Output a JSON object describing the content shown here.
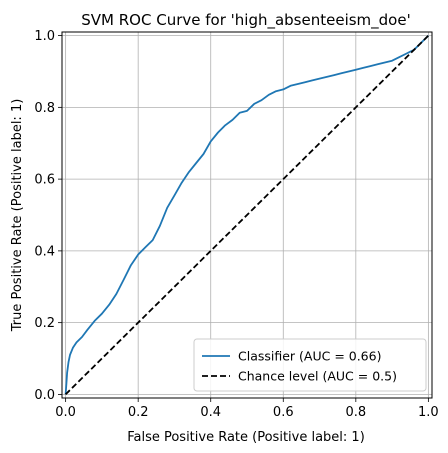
{
  "chart_data": {
    "type": "line",
    "title": "SVM ROC Curve for 'high_absenteeism_doe'",
    "xlabel": "False Positive Rate (Positive label: 1)",
    "ylabel": "True Positive Rate (Positive label: 1)",
    "xlim": [
      -0.01,
      1.01
    ],
    "ylim": [
      -0.01,
      1.01
    ],
    "xticks": [
      "0.0",
      "0.2",
      "0.4",
      "0.6",
      "0.8",
      "1.0"
    ],
    "yticks": [
      "0.0",
      "0.2",
      "0.4",
      "0.6",
      "0.8",
      "1.0"
    ],
    "grid": true,
    "legend_position": "bottom-right",
    "series": [
      {
        "name": "Classifier (AUC = 0.66)",
        "color": "#1f77b4",
        "style": "solid",
        "x": [
          0.0,
          0.002,
          0.004,
          0.008,
          0.012,
          0.02,
          0.03,
          0.045,
          0.06,
          0.08,
          0.1,
          0.12,
          0.14,
          0.16,
          0.18,
          0.2,
          0.22,
          0.24,
          0.26,
          0.28,
          0.3,
          0.32,
          0.34,
          0.36,
          0.38,
          0.4,
          0.42,
          0.44,
          0.46,
          0.48,
          0.5,
          0.52,
          0.54,
          0.56,
          0.58,
          0.6,
          0.62,
          0.64,
          0.66,
          0.68,
          0.7,
          0.72,
          0.74,
          0.76,
          0.78,
          0.8,
          0.82,
          0.84,
          0.86,
          0.88,
          0.9,
          0.92,
          0.94,
          0.95,
          0.96,
          0.97,
          0.98,
          0.99,
          1.0
        ],
        "y": [
          0.0,
          0.03,
          0.06,
          0.09,
          0.11,
          0.13,
          0.145,
          0.16,
          0.18,
          0.205,
          0.225,
          0.25,
          0.28,
          0.32,
          0.36,
          0.39,
          0.41,
          0.43,
          0.47,
          0.52,
          0.555,
          0.59,
          0.62,
          0.645,
          0.67,
          0.705,
          0.73,
          0.75,
          0.765,
          0.785,
          0.79,
          0.81,
          0.82,
          0.835,
          0.845,
          0.85,
          0.86,
          0.865,
          0.87,
          0.875,
          0.88,
          0.885,
          0.89,
          0.895,
          0.9,
          0.905,
          0.91,
          0.915,
          0.92,
          0.925,
          0.93,
          0.94,
          0.95,
          0.955,
          0.96,
          0.97,
          0.98,
          0.99,
          1.0
        ]
      },
      {
        "name": "Chance level (AUC = 0.5)",
        "color": "#000000",
        "style": "dashed",
        "x": [
          0.0,
          1.0
        ],
        "y": [
          0.0,
          1.0
        ]
      }
    ]
  }
}
